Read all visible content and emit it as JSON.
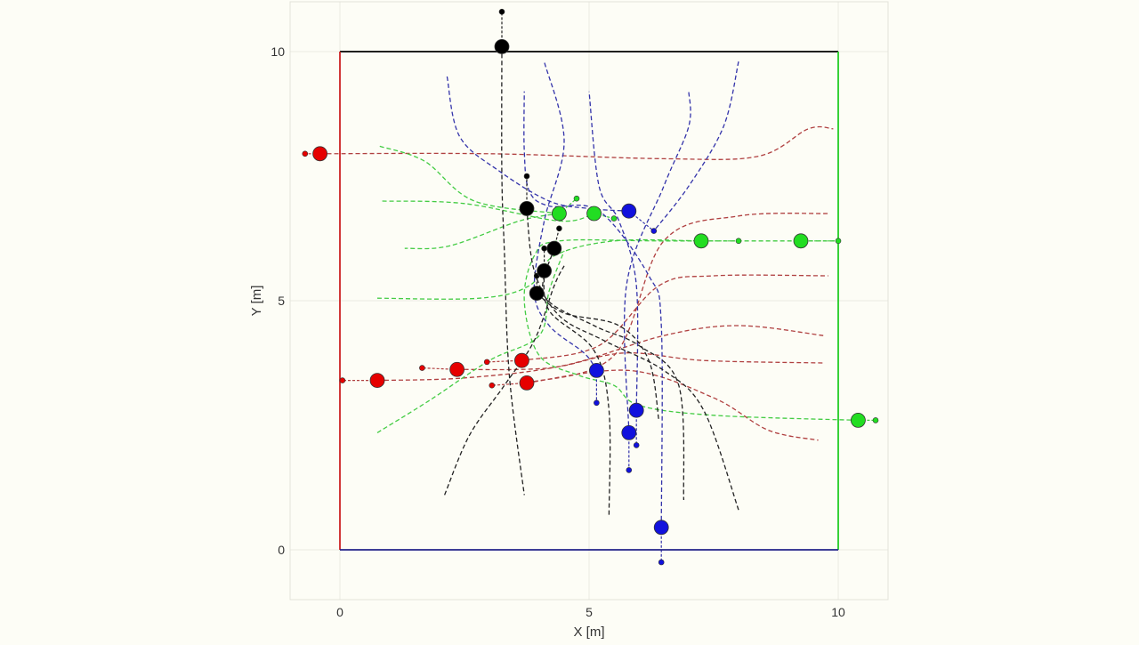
{
  "chart_data": {
    "type": "scatter",
    "title": "",
    "xlabel": "X [m]",
    "ylabel": "Y [m]",
    "xlim": [
      -1,
      11
    ],
    "ylim": [
      -1,
      11
    ],
    "xticks": [
      0,
      5,
      10
    ],
    "yticks": [
      0,
      5,
      10
    ],
    "xtick_labels": [
      "0",
      "5",
      "10"
    ],
    "ytick_labels": [
      "0",
      "5",
      "10"
    ],
    "grid": true,
    "legend": "none",
    "colors": {
      "red": "#e60000",
      "green": "#22dd22",
      "blue": "#1111dd",
      "black": "#000000",
      "traj_red": "#b04040",
      "traj_green": "#44cc44",
      "traj_blue": "#3333aa",
      "traj_black": "#222222"
    },
    "boundaries": [
      {
        "color": "#000000",
        "points": [
          [
            0,
            10
          ],
          [
            10,
            10
          ]
        ]
      },
      {
        "color": "#cc2222",
        "points": [
          [
            0,
            0
          ],
          [
            0,
            10
          ]
        ]
      },
      {
        "color": "#22cc22",
        "points": [
          [
            10,
            0
          ],
          [
            10,
            10
          ]
        ]
      },
      {
        "color": "#222288",
        "points": [
          [
            0,
            0
          ],
          [
            10,
            0
          ]
        ]
      }
    ],
    "series": [
      {
        "color_key": "red",
        "agents": [
          [
            -0.4,
            7.95
          ],
          [
            0.75,
            3.4
          ],
          [
            2.35,
            3.62
          ],
          [
            3.65,
            3.8
          ],
          [
            3.75,
            3.35
          ]
        ],
        "goals": [
          [
            -0.7,
            7.95
          ],
          [
            0.05,
            3.4
          ],
          [
            1.65,
            3.65
          ],
          [
            2.95,
            3.77
          ],
          [
            3.05,
            3.3
          ]
        ],
        "trajectories": [
          [
            [
              -0.4,
              7.95
            ],
            [
              3,
              7.95
            ],
            [
              6.5,
              7.85
            ],
            [
              8.4,
              7.9
            ],
            [
              9.4,
              8.45
            ],
            [
              9.9,
              8.45
            ]
          ],
          [
            [
              0.75,
              3.4
            ],
            [
              2.5,
              3.45
            ],
            [
              4.5,
              3.7
            ],
            [
              6.5,
              4.3
            ],
            [
              8,
              4.5
            ],
            [
              9.7,
              4.3
            ]
          ],
          [
            [
              2.35,
              3.62
            ],
            [
              4.2,
              3.65
            ],
            [
              5.7,
              3.95
            ],
            [
              7.3,
              3.8
            ],
            [
              9.7,
              3.75
            ]
          ],
          [
            [
              3.65,
              3.8
            ],
            [
              5.2,
              4.1
            ],
            [
              6.4,
              5.3
            ],
            [
              7.5,
              5.5
            ],
            [
              9.8,
              5.5
            ]
          ],
          [
            [
              3.75,
              3.35
            ],
            [
              5.5,
              3.9
            ],
            [
              6.5,
              6.2
            ],
            [
              8,
              6.7
            ],
            [
              9.8,
              6.75
            ]
          ],
          [
            [
              3.75,
              3.35
            ],
            [
              5.8,
              3.6
            ],
            [
              7.5,
              3.05
            ],
            [
              8.6,
              2.4
            ],
            [
              9.6,
              2.2
            ]
          ]
        ]
      },
      {
        "color_key": "green",
        "agents": [
          [
            4.4,
            6.75
          ],
          [
            5.1,
            6.75
          ],
          [
            7.25,
            6.2
          ],
          [
            9.25,
            6.2
          ],
          [
            10.4,
            2.6
          ]
        ],
        "goals": [
          [
            4.75,
            7.05
          ],
          [
            5.5,
            6.65
          ],
          [
            8.0,
            6.2
          ],
          [
            10.0,
            6.2
          ],
          [
            10.75,
            2.6
          ]
        ],
        "trajectories": [
          [
            [
              10.4,
              2.6
            ],
            [
              7.5,
              2.7
            ],
            [
              6,
              2.9
            ],
            [
              5.5,
              3.3
            ],
            [
              4.8,
              3.5
            ],
            [
              4,
              3.9
            ],
            [
              3.7,
              5
            ],
            [
              3.9,
              5.9
            ],
            [
              4.4,
              6.2
            ],
            [
              6.5,
              6.2
            ],
            [
              10,
              6.2
            ]
          ],
          [
            [
              0.8,
              8.1
            ],
            [
              1.7,
              7.8
            ],
            [
              2.7,
              7
            ],
            [
              4.4,
              6.75
            ]
          ],
          [
            [
              0.85,
              7
            ],
            [
              2.5,
              6.95
            ],
            [
              4.4,
              6.6
            ],
            [
              5.1,
              6.75
            ]
          ],
          [
            [
              0.75,
              2.35
            ],
            [
              1.8,
              3
            ],
            [
              3,
              3.8
            ],
            [
              4,
              4.3
            ],
            [
              4.2,
              5.2
            ],
            [
              4.5,
              6
            ]
          ],
          [
            [
              0.75,
              5.05
            ],
            [
              2.8,
              5.05
            ],
            [
              3.8,
              5.3
            ],
            [
              4.3,
              5.9
            ],
            [
              5.5,
              6.2
            ],
            [
              7.25,
              6.2
            ]
          ],
          [
            [
              4.4,
              6.75
            ],
            [
              3.6,
              6.6
            ],
            [
              2.2,
              6.1
            ],
            [
              1.3,
              6.05
            ]
          ]
        ]
      },
      {
        "color_key": "blue",
        "agents": [
          [
            5.8,
            6.8
          ],
          [
            5.15,
            3.6
          ],
          [
            5.95,
            2.8
          ],
          [
            5.8,
            2.35
          ],
          [
            6.45,
            0.45
          ]
        ],
        "goals": [
          [
            6.3,
            6.4
          ],
          [
            5.15,
            2.95
          ],
          [
            5.95,
            2.1
          ],
          [
            5.8,
            1.6
          ],
          [
            6.45,
            -0.25
          ]
        ],
        "trajectories": [
          [
            [
              2.15,
              9.5
            ],
            [
              2.4,
              8.3
            ],
            [
              3.2,
              7.6
            ],
            [
              4.2,
              7
            ],
            [
              5,
              6.85
            ],
            [
              5.8,
              6.8
            ]
          ],
          [
            [
              8,
              9.8
            ],
            [
              7.7,
              8.5
            ],
            [
              7,
              7.3
            ],
            [
              6.3,
              6.4
            ]
          ],
          [
            [
              6.45,
              0.45
            ],
            [
              6.45,
              4.5
            ],
            [
              6.2,
              5.5
            ],
            [
              5.2,
              6.8
            ],
            [
              4.2,
              6.9
            ],
            [
              3.8,
              7.2
            ],
            [
              3.7,
              8
            ],
            [
              3.7,
              9.2
            ]
          ],
          [
            [
              5.95,
              2.8
            ],
            [
              5.95,
              5.3
            ],
            [
              5.6,
              6.6
            ],
            [
              5.2,
              7.3
            ],
            [
              5,
              9.2
            ]
          ],
          [
            [
              5.8,
              2.35
            ],
            [
              5.75,
              5.3
            ],
            [
              6.5,
              7.3
            ],
            [
              7,
              8.5
            ],
            [
              7,
              9.2
            ]
          ],
          [
            [
              5.15,
              3.6
            ],
            [
              4.9,
              3.95
            ],
            [
              4.2,
              4.5
            ],
            [
              3.9,
              5.2
            ],
            [
              4.1,
              6.6
            ],
            [
              4.5,
              8.2
            ],
            [
              4.1,
              9.8
            ]
          ]
        ]
      },
      {
        "color_key": "black",
        "agents": [
          [
            3.25,
            10.1
          ],
          [
            3.75,
            6.85
          ],
          [
            4.3,
            6.05
          ],
          [
            4.1,
            5.6
          ],
          [
            3.95,
            5.15
          ]
        ],
        "goals": [
          [
            3.25,
            10.8
          ],
          [
            3.75,
            7.5
          ],
          [
            4.4,
            6.45
          ],
          [
            4.1,
            6.05
          ],
          [
            3.95,
            5.5
          ]
        ],
        "trajectories": [
          [
            [
              3.25,
              10.1
            ],
            [
              3.25,
              7.5
            ],
            [
              3.3,
              6
            ],
            [
              3.4,
              3.5
            ],
            [
              3.7,
              1.1
            ]
          ],
          [
            [
              2.1,
              1.1
            ],
            [
              2.6,
              2.3
            ],
            [
              3.3,
              3.3
            ],
            [
              3.9,
              4.2
            ],
            [
              4.3,
              5.3
            ],
            [
              4.5,
              5.7
            ]
          ],
          [
            [
              3.75,
              6.85
            ],
            [
              3.9,
              5.6
            ],
            [
              4.4,
              4.7
            ],
            [
              5.3,
              4.2
            ],
            [
              6.5,
              3.6
            ],
            [
              7.3,
              2.8
            ],
            [
              8,
              0.8
            ]
          ],
          [
            [
              4.3,
              6.05
            ],
            [
              4.1,
              5.1
            ],
            [
              5.1,
              4.5
            ],
            [
              6,
              4.1
            ],
            [
              6.8,
              3.3
            ],
            [
              6.9,
              1
            ]
          ],
          [
            [
              4.1,
              5.6
            ],
            [
              4.2,
              4.8
            ],
            [
              5.1,
              4
            ],
            [
              5.4,
              2.8
            ],
            [
              5.4,
              0.7
            ]
          ],
          [
            [
              3.95,
              5.15
            ],
            [
              4.5,
              4.75
            ],
            [
              5.6,
              4.5
            ],
            [
              6.2,
              3.8
            ],
            [
              6.4,
              2.6
            ]
          ]
        ]
      }
    ]
  }
}
